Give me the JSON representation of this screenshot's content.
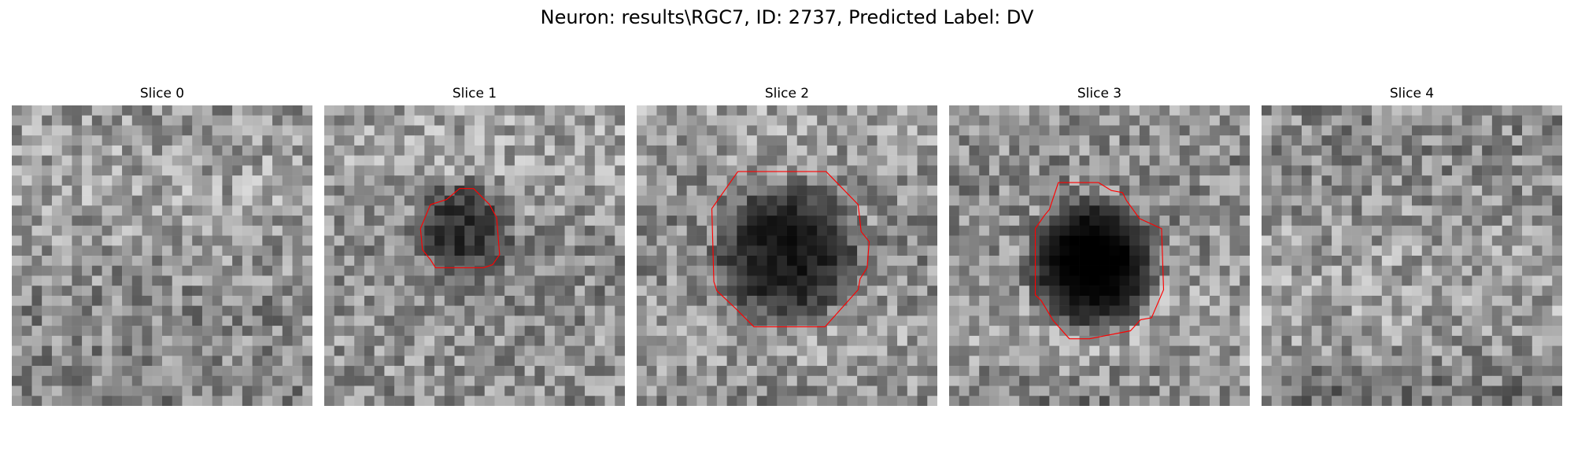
{
  "figure": {
    "title": "Neuron: results\\RGC7, ID: 2737, Predicted Label: DV"
  },
  "colors": {
    "contour": "#ff0000",
    "background": "#ffffff"
  },
  "image_grid": {
    "size": 30,
    "colormap": "grayscale"
  },
  "slices": [
    {
      "title": "Slice 0",
      "blob": {
        "level": 0.05
      },
      "contour": []
    },
    {
      "title": "Slice 1",
      "blob": {
        "cx": 13.8,
        "cy": 12.3,
        "r": 5.5,
        "level": 0.35
      },
      "contour": [
        [
          10.6,
          9.9
        ],
        [
          12.2,
          9.4
        ],
        [
          13.5,
          8.3
        ],
        [
          14.9,
          8.3
        ],
        [
          16.5,
          9.9
        ],
        [
          17.2,
          11.2
        ],
        [
          17.5,
          14.9
        ],
        [
          16.8,
          15.9
        ],
        [
          15.9,
          16.2
        ],
        [
          11.1,
          16.2
        ],
        [
          10.6,
          15.4
        ],
        [
          9.8,
          14.4
        ],
        [
          9.6,
          12.3
        ]
      ]
    },
    {
      "title": "Slice 2",
      "blob": {
        "cx": 15.0,
        "cy": 14.8,
        "r": 8.0,
        "level": 0.45
      },
      "contour": [
        [
          10.1,
          6.6
        ],
        [
          18.9,
          6.6
        ],
        [
          22.1,
          9.9
        ],
        [
          22.4,
          12.6
        ],
        [
          23.2,
          13.6
        ],
        [
          23.0,
          16.2
        ],
        [
          22.3,
          17.3
        ],
        [
          22.1,
          18.4
        ],
        [
          18.8,
          22.1
        ],
        [
          11.7,
          22.1
        ],
        [
          9.9,
          20.3
        ],
        [
          8.0,
          18.5
        ],
        [
          7.7,
          17.6
        ],
        [
          7.5,
          10.3
        ],
        [
          8.2,
          9.3
        ]
      ]
    },
    {
      "title": "Slice 3",
      "blob": {
        "cx": 14.3,
        "cy": 15.8,
        "r": 7.5,
        "level": 0.6
      },
      "contour": [
        [
          10.9,
          7.7
        ],
        [
          14.9,
          7.7
        ],
        [
          16.2,
          8.5
        ],
        [
          17.3,
          8.7
        ],
        [
          17.7,
          9.5
        ],
        [
          19.0,
          11.3
        ],
        [
          21.2,
          12.3
        ],
        [
          21.4,
          18.4
        ],
        [
          20.2,
          21.2
        ],
        [
          19.1,
          21.4
        ],
        [
          18.1,
          22.5
        ],
        [
          14.0,
          23.3
        ],
        [
          12.0,
          23.3
        ],
        [
          10.4,
          21.5
        ],
        [
          9.2,
          19.5
        ],
        [
          8.6,
          18.9
        ],
        [
          8.6,
          12.3
        ],
        [
          9.5,
          11.0
        ],
        [
          10.0,
          10.4
        ]
      ]
    },
    {
      "title": "Slice 4",
      "blob": {
        "level": 0.05
      },
      "contour": []
    }
  ]
}
